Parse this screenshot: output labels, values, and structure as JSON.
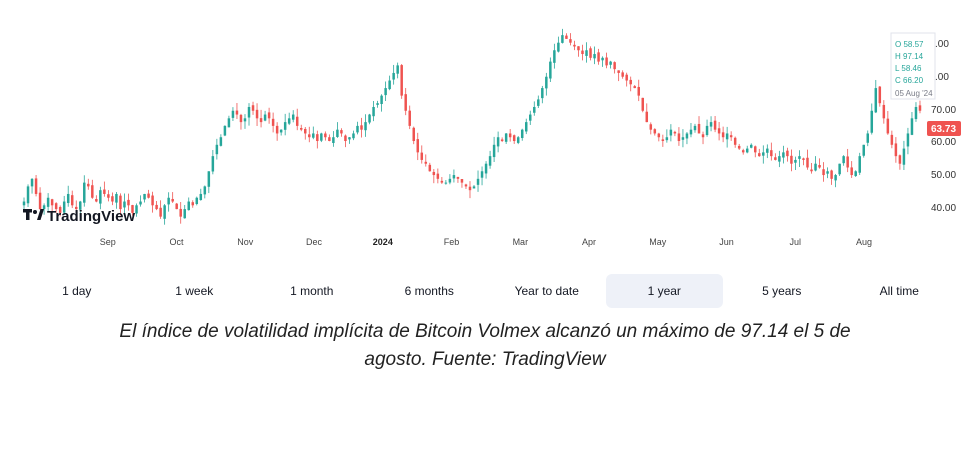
{
  "chart_data": {
    "type": "candlestick",
    "title": "",
    "xlabel": "",
    "ylabel": "",
    "ylim": [
      33,
      88
    ],
    "y_ticks": [
      "40.00",
      "50.00",
      "60.00",
      "70.00"
    ],
    "y_ticks_clipped": [
      ".00",
      ".00"
    ],
    "x_ticks": [
      "Sep",
      "Oct",
      "Nov",
      "Dec",
      "2024",
      "Feb",
      "Mar",
      "Apr",
      "May",
      "Jun",
      "Jul",
      "Aug"
    ],
    "x_tick_bold": "2024",
    "close_series": [
      40,
      44,
      46,
      42,
      38,
      39,
      41,
      39,
      38,
      37,
      40,
      42,
      39,
      38,
      40,
      45,
      44,
      41,
      40,
      43,
      42,
      41,
      40,
      42,
      38,
      40,
      39,
      37,
      39,
      40,
      42,
      41,
      39,
      38,
      36,
      39,
      41,
      40,
      38,
      36,
      38,
      40,
      39,
      41,
      42,
      44,
      48,
      52,
      55,
      57,
      60,
      62,
      64,
      63,
      61,
      62,
      65,
      64,
      62,
      61,
      63,
      62,
      60,
      58,
      59,
      61,
      62,
      63,
      60,
      59,
      58,
      57,
      58,
      56,
      58,
      57,
      56,
      57,
      59,
      58,
      56,
      57,
      58,
      60,
      59,
      61,
      63,
      65,
      66,
      68,
      70,
      72,
      74,
      76,
      68,
      64,
      60,
      56,
      53,
      51,
      50,
      48,
      47,
      46,
      45,
      45,
      46,
      47,
      46,
      45,
      44,
      43,
      44,
      46,
      48,
      50,
      52,
      55,
      57,
      56,
      58,
      57,
      56,
      57,
      59,
      61,
      63,
      65,
      67,
      70,
      73,
      77,
      80,
      82,
      84,
      83,
      82,
      81,
      80,
      79,
      80,
      78,
      79,
      77,
      78,
      76,
      77,
      75,
      74,
      73,
      72,
      71,
      70,
      68,
      64,
      61,
      59,
      58,
      57,
      56,
      57,
      59,
      58,
      56,
      57,
      58,
      59,
      60,
      58,
      57,
      60,
      61,
      59,
      58,
      57,
      58,
      57,
      55,
      54,
      53,
      54,
      55,
      53,
      52,
      53,
      54,
      52,
      51,
      52,
      53,
      52,
      50,
      51,
      52,
      51,
      49,
      48,
      50,
      49,
      47,
      48,
      46,
      47,
      50,
      52,
      49,
      47,
      48,
      52,
      55,
      58,
      64,
      70,
      66,
      62,
      58,
      55,
      52,
      50,
      54,
      58,
      62,
      65,
      64
    ],
    "current_value": 63.73,
    "current_value_label": "63.73",
    "current_axis_label": "70.00",
    "ohlc_tooltip": {
      "o": "O 58.57",
      "h": "H 97.14",
      "l": "L 58.46",
      "c": "C 66.20",
      "date": "05 Aug '24"
    },
    "colors": {
      "up": "#26a69a",
      "down": "#ef5350",
      "wick_up": "#26a69a",
      "wick_down": "#ef5350"
    },
    "grid": false,
    "legend": "none"
  },
  "branding": {
    "logo_text": "TradingView"
  },
  "ranges": [
    {
      "label": "1 day",
      "active": false
    },
    {
      "label": "1 week",
      "active": false
    },
    {
      "label": "1 month",
      "active": false
    },
    {
      "label": "6 months",
      "active": false
    },
    {
      "label": "Year to date",
      "active": false
    },
    {
      "label": "1 year",
      "active": true
    },
    {
      "label": "5 years",
      "active": false
    },
    {
      "label": "All time",
      "active": false
    }
  ],
  "caption": {
    "line1": "El índice de volatilidad implícita de Bitcoin Volmex alcanzó un máximo de 97.14 el 5 de",
    "line2": "agosto. Fuente: TradingView"
  }
}
